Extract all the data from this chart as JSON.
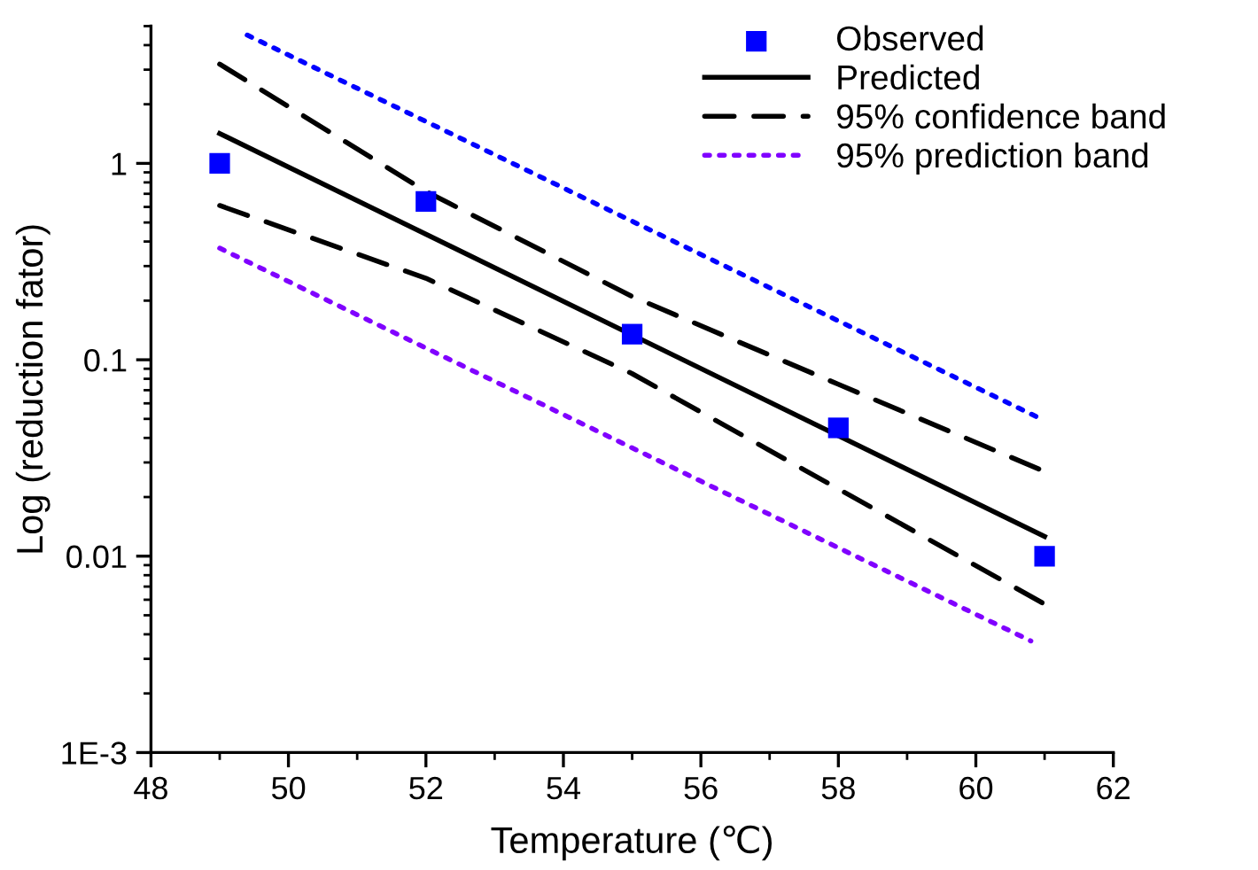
{
  "chart_data": {
    "type": "line",
    "xlabel": "Temperature (℃)",
    "ylabel": "Log (reduction fator)",
    "xlim": [
      48,
      62
    ],
    "xticks": [
      48,
      50,
      52,
      54,
      56,
      58,
      60,
      62
    ],
    "ylim": [
      0.001,
      5
    ],
    "yticks": [
      {
        "value": 0.001,
        "label": "1E-3"
      },
      0.01,
      0.1,
      1
    ],
    "log": "y",
    "grid": false,
    "legend": "top right",
    "series": [
      {
        "name": "Observed",
        "type": "scatter",
        "marker": "square",
        "color": "#0000ff",
        "x": [
          49,
          52,
          55,
          58,
          61
        ],
        "values": [
          1.0,
          0.64,
          0.135,
          0.045,
          0.01
        ]
      },
      {
        "name": "Predicted",
        "line_style": "solid",
        "color": "#000000",
        "x": [
          49,
          61
        ],
        "values": [
          1.42,
          0.0126
        ]
      },
      {
        "name": "95% confidence band",
        "line_style": "dashed",
        "color": "#000000",
        "x": [
          49,
          52,
          55,
          58,
          61
        ],
        "values": [
          3.2,
          0.72,
          0.21,
          0.075,
          0.027
        ]
      },
      {
        "line_style": "dashed",
        "color": "#000000",
        "x": [
          49,
          52,
          55,
          58,
          61
        ],
        "values": [
          0.61,
          0.26,
          0.085,
          0.022,
          0.0057
        ]
      },
      {
        "line_style": "dotted",
        "color": "#0000ff",
        "x": [
          49.4,
          61
        ],
        "values": [
          4.5,
          0.049
        ]
      },
      {
        "name": "95% prediction band",
        "line_style": "dotted",
        "color": "#8000ff",
        "x": [
          49,
          60.8
        ],
        "values": [
          0.37,
          0.0037
        ]
      }
    ]
  }
}
